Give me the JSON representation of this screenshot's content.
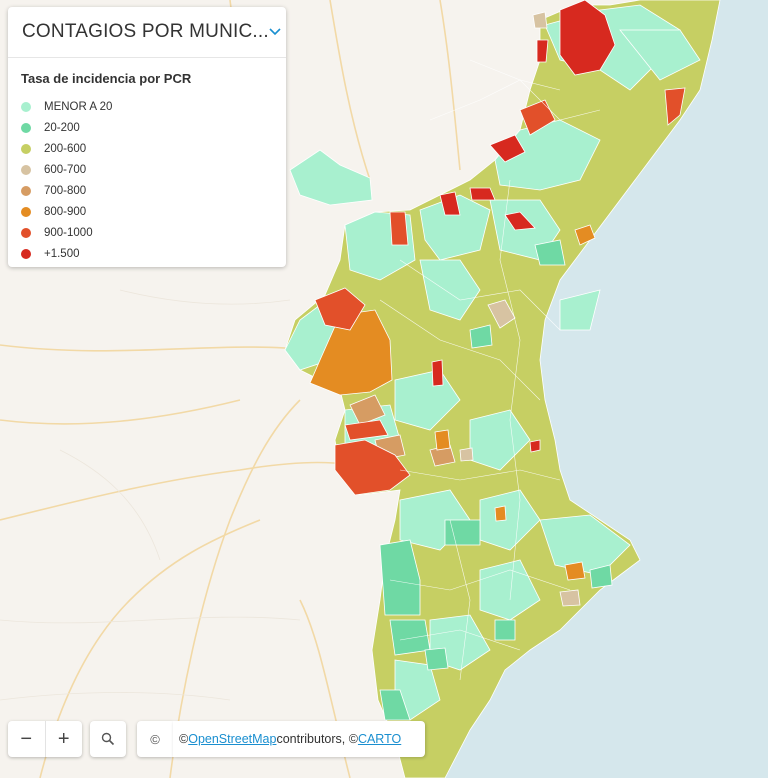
{
  "panel": {
    "title": "CONTAGIOS POR MUNIC...",
    "legend_title": "Tasa de incidencia por PCR",
    "legend": [
      {
        "label": "MENOR A 20",
        "color": "#a8f0cf"
      },
      {
        "label": "20-200",
        "color": "#6fd9a4"
      },
      {
        "label": "200-600",
        "color": "#c6cf63"
      },
      {
        "label": "600-700",
        "color": "#d7c3a2"
      },
      {
        "label": "700-800",
        "color": "#d69c63"
      },
      {
        "label": "800-900",
        "color": "#e48c22"
      },
      {
        "label": "900-1000",
        "color": "#e2502a"
      },
      {
        "label": "+1.500",
        "color": "#d7291f"
      }
    ]
  },
  "controls": {
    "zoom_out": "−",
    "zoom_in": "+",
    "attribution_toggle": "©"
  },
  "attribution": {
    "prefix": "© ",
    "osm": "OpenStreetMap",
    "middle": " contributors, © ",
    "carto": "CARTO"
  },
  "colors": {
    "sea": "#d5e7ec",
    "land": "#f6f3ee"
  }
}
